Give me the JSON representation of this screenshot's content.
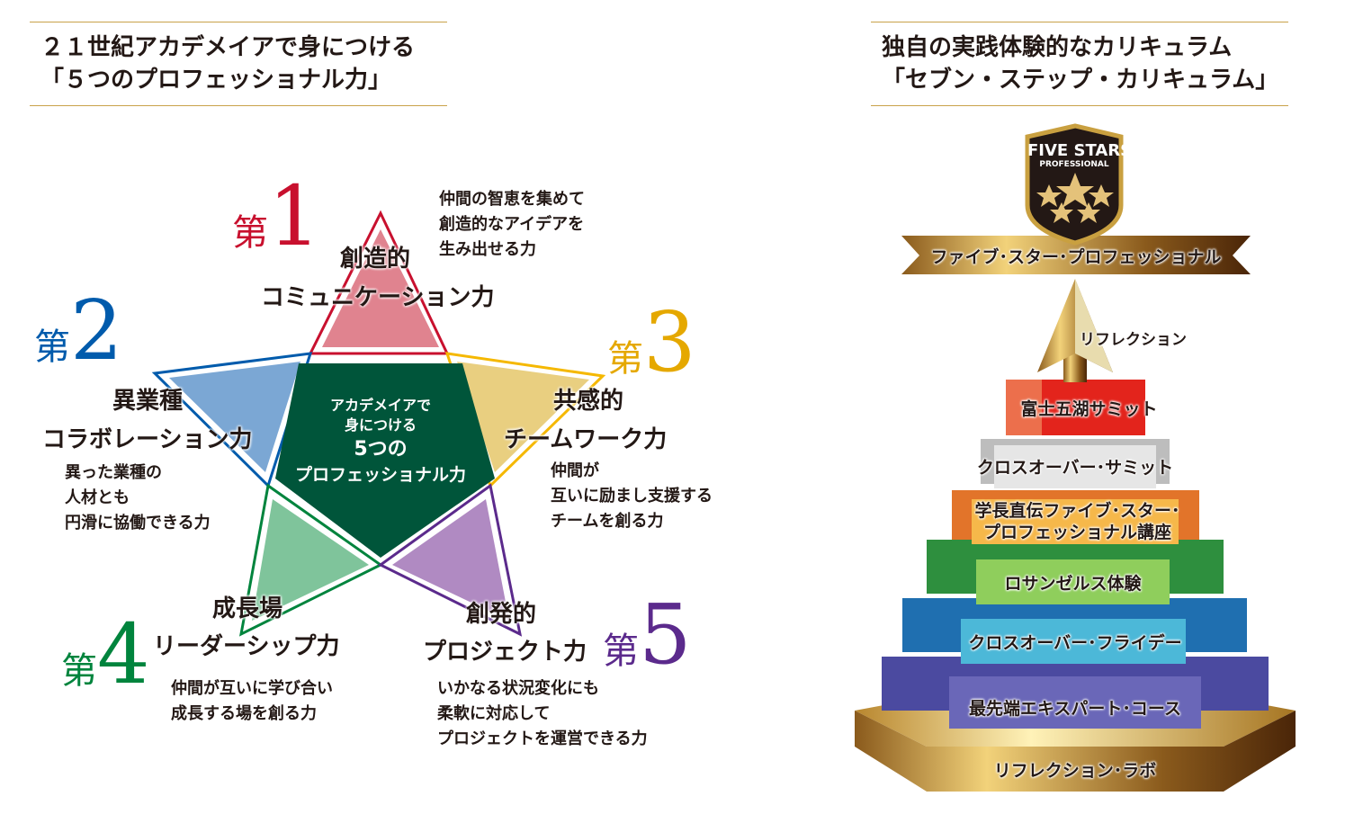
{
  "left_panel": {
    "heading_line1": "２１世紀アカデメイアで身につける",
    "heading_line2": "「５つのプロフェッショナル力」",
    "center": {
      "line1": "アカデメイアで",
      "line2": "身につける",
      "line3": "5つの",
      "line4": "プロフェッショナル力"
    },
    "ordinal_prefix": "第",
    "powers": [
      {
        "number": "1",
        "color": "#c8102e",
        "title1": "創造的",
        "title2": "コミュニケーション力",
        "desc": [
          "仲間の智恵を集めて",
          "創造的なアイデアを",
          "生み出せる力"
        ]
      },
      {
        "number": "2",
        "color": "#005bac",
        "title1": "異業種",
        "title2": "コラボレーション力",
        "desc": [
          "異った業種の",
          "人材とも",
          "円滑に協働できる力"
        ]
      },
      {
        "number": "3",
        "color": "#e5a800",
        "title1": "共感的",
        "title2": "チームワーク力",
        "desc": [
          "仲間が",
          "互いに励まし支援する",
          "チームを創る力"
        ]
      },
      {
        "number": "4",
        "color": "#00843d",
        "title1": "成長場",
        "title2": "リーダーシップ力",
        "desc": [
          "仲間が互いに学び合い",
          "成長する場を創る力"
        ]
      },
      {
        "number": "5",
        "color": "#5b2a8c",
        "title1": "創発的",
        "title2": "プロジェクト力",
        "desc": [
          "いかなる状況変化にも",
          "柔軟に対応して",
          "プロジェクトを運営できる力"
        ]
      }
    ]
  },
  "right_panel": {
    "heading_line1": "独自の実践体験的なカリキュラム",
    "heading_line2": "「セブン・ステップ・カリキュラム」",
    "badge": {
      "line1": "FIVE STARS",
      "line2": "PROFESSIONAL"
    },
    "ribbon": "ファイブ･スター･プロフェッショナル",
    "arrow_label": "リフレクション",
    "steps": [
      {
        "label": "富士五湖サミット",
        "color": "#e53935"
      },
      {
        "label": "クロスオーバー･サミット",
        "color": "#c8c8c8"
      },
      {
        "label": "学長直伝ファイブ･スター･\nプロフェッショナル講座",
        "line1": "学長直伝ファイブ･スター･",
        "line2": "プロフェッショナル講座",
        "color": "#f39a2c"
      },
      {
        "label": "ロサンゼルス体験",
        "color": "#6cbf4a"
      },
      {
        "label": "クロスオーバー･フライデー",
        "color": "#3fb4d6"
      },
      {
        "label": "最先端エキスパート･コース",
        "color": "#5a5aa8"
      },
      {
        "label": "リフレクション･ラボ",
        "color": "#c9a040"
      }
    ]
  }
}
